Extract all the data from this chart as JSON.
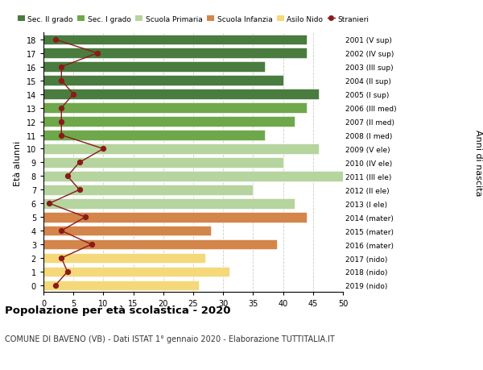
{
  "ages": [
    18,
    17,
    16,
    15,
    14,
    13,
    12,
    11,
    10,
    9,
    8,
    7,
    6,
    5,
    4,
    3,
    2,
    1,
    0
  ],
  "right_labels": [
    "2001 (V sup)",
    "2002 (IV sup)",
    "2003 (III sup)",
    "2004 (II sup)",
    "2005 (I sup)",
    "2006 (III med)",
    "2007 (II med)",
    "2008 (I med)",
    "2009 (V ele)",
    "2010 (IV ele)",
    "2011 (III ele)",
    "2012 (II ele)",
    "2013 (I ele)",
    "2014 (mater)",
    "2015 (mater)",
    "2016 (mater)",
    "2017 (nido)",
    "2018 (nido)",
    "2019 (nido)"
  ],
  "bar_values": [
    44,
    44,
    37,
    40,
    46,
    44,
    42,
    37,
    46,
    40,
    50,
    35,
    42,
    44,
    28,
    39,
    27,
    31,
    26
  ],
  "bar_colors": [
    "#4a7c3f",
    "#4a7c3f",
    "#4a7c3f",
    "#4a7c3f",
    "#4a7c3f",
    "#6fa84b",
    "#6fa84b",
    "#6fa84b",
    "#b5d49e",
    "#b5d49e",
    "#b5d49e",
    "#b5d49e",
    "#b5d49e",
    "#d4854a",
    "#d4854a",
    "#d4854a",
    "#f5d87a",
    "#f5d87a",
    "#f5d87a"
  ],
  "stranieri_values": [
    2,
    9,
    3,
    3,
    5,
    3,
    3,
    3,
    10,
    6,
    4,
    6,
    1,
    7,
    3,
    8,
    3,
    4,
    2
  ],
  "legend_labels": [
    "Sec. II grado",
    "Sec. I grado",
    "Scuola Primaria",
    "Scuola Infanzia",
    "Asilo Nido",
    "Stranieri"
  ],
  "legend_colors": [
    "#4a7c3f",
    "#6fa84b",
    "#b5d49e",
    "#d4854a",
    "#f5d87a",
    "#8b1a1a"
  ],
  "ylabel": "Età alunni",
  "xlabel_right": "Anni di nascita",
  "title": "Popolazione per età scolastica - 2020",
  "subtitle": "COMUNE DI BAVENO (VB) - Dati ISTAT 1° gennaio 2020 - Elaborazione TUTTITALIA.IT",
  "xlim": [
    0,
    50
  ],
  "background_color": "#ffffff",
  "grid_color": "#cccccc"
}
